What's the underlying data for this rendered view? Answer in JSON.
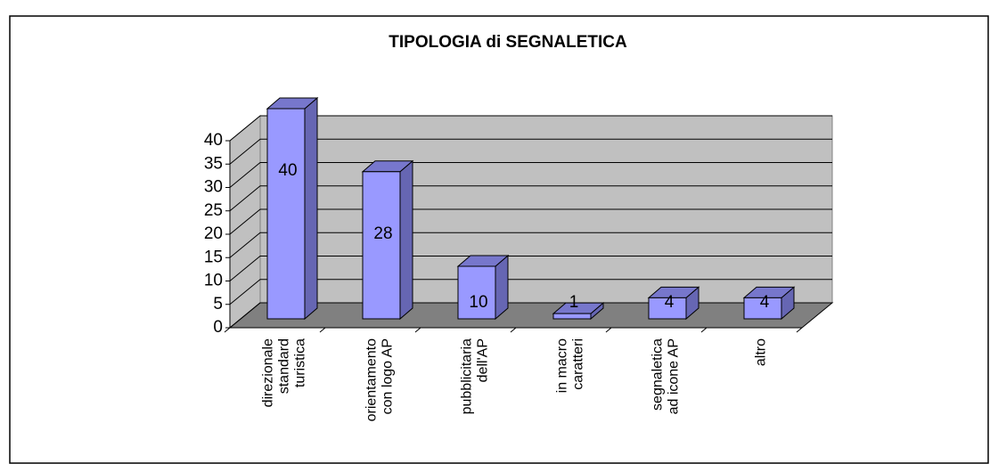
{
  "chart_data": {
    "type": "bar",
    "title": "TIPOLOGIA di SEGNALETICA",
    "categories": [
      "direzionale\nstandard\nturistica",
      "orientamento\ncon logo AP",
      "pubblicitaria\ndell'AP",
      "in macro\ncaratteri",
      "segnaletica\nad icone AP",
      "altro"
    ],
    "values": [
      40,
      28,
      10,
      1,
      4,
      4
    ],
    "color": "#9999ff",
    "ylim": [
      0,
      40
    ],
    "yticks": [
      0,
      5,
      10,
      15,
      20,
      25,
      30,
      35,
      40
    ],
    "grid": true
  }
}
